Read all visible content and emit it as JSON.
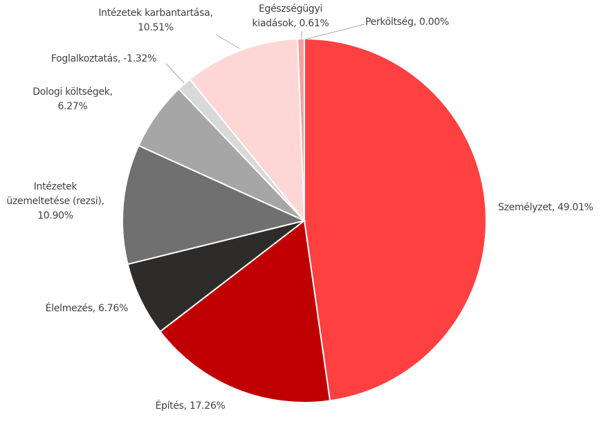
{
  "chart_data": {
    "type": "pie",
    "categories": [
      "Személyzet",
      "Építés",
      "Élelmezés",
      "Intézetek üzemeltetése (rezsi)",
      "Dologi költségek",
      "Foglalkoztatás",
      "Intézetek karbantartása",
      "Egészségügyi kiadások",
      "Perköltség"
    ],
    "values": [
      49.01,
      17.26,
      6.76,
      10.9,
      6.27,
      -1.32,
      10.51,
      0.61,
      0.0
    ],
    "value_labels": [
      "49.01%",
      "17.26%",
      "6.76%",
      "10.90%",
      "6.27%",
      "-1.32%",
      "10.51%",
      "0.61%",
      "0.00%"
    ],
    "colors": [
      "#ff4040",
      "#c00000",
      "#2e2b2b",
      "#707070",
      "#a6a6a6",
      "#d9d9d9",
      "#ffd6d6",
      "#f4a0a0",
      "#ff8080"
    ]
  }
}
